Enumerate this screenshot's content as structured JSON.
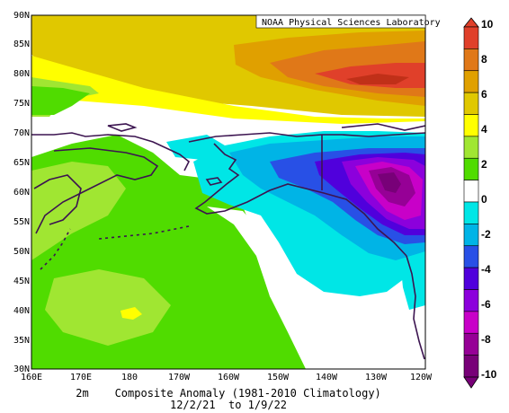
{
  "header": {
    "credit": "NOAA Physical Sciences Laboratory"
  },
  "caption": {
    "line1": "2m    Composite Anomaly (1981-2010 Climatology)",
    "line2": "12/2/21  to 1/9/22"
  },
  "axes": {
    "lat_labels": [
      "90N",
      "85N",
      "80N",
      "75N",
      "70N",
      "65N",
      "60N",
      "55N",
      "50N",
      "45N",
      "40N",
      "35N",
      "30N"
    ],
    "lon_labels": [
      "160E",
      "170E",
      "180",
      "170W",
      "160W",
      "150W",
      "140W",
      "130W",
      "120W"
    ]
  },
  "colorbar": {
    "labels": [
      "10",
      "8",
      "6",
      "4",
      "2",
      "0",
      "-2",
      "-4",
      "-6",
      "-8",
      "-10"
    ],
    "colors": [
      "#e0402a",
      "#e07818",
      "#e0a000",
      "#e0c800",
      "#ffff00",
      "#a0e632",
      "#50dc00",
      "#ffffff",
      "#00e6e6",
      "#00b4e6",
      "#2850e6",
      "#5000dc",
      "#8c00dc",
      "#c800c8",
      "#960096",
      "#780078"
    ]
  }
}
